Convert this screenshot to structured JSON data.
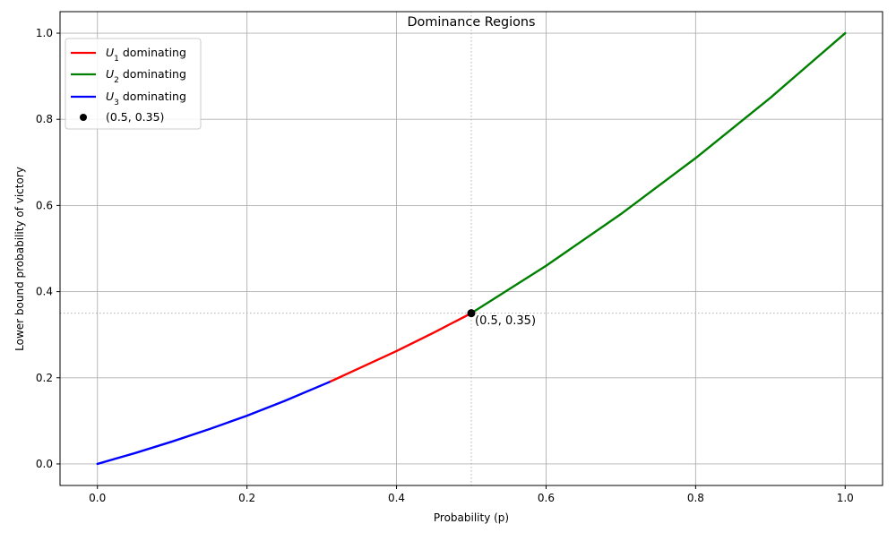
{
  "chart_data": {
    "type": "line",
    "title": "Dominance Regions",
    "xlabel": "Probability (p)",
    "ylabel": "Lower bound probability of victory",
    "xlim": [
      -0.05,
      1.05
    ],
    "ylim": [
      -0.05,
      1.05
    ],
    "xticks": [
      0.0,
      0.2,
      0.4,
      0.6,
      0.8,
      1.0
    ],
    "xtick_labels": [
      "0.0",
      "0.2",
      "0.4",
      "0.6",
      "0.8",
      "1.0"
    ],
    "yticks": [
      0.0,
      0.2,
      0.4,
      0.6,
      0.8,
      1.0
    ],
    "ytick_labels": [
      "0.0",
      "0.2",
      "0.4",
      "0.6",
      "0.8",
      "1.0"
    ],
    "grid": true,
    "legend_position": "top-left",
    "series": [
      {
        "name": "U1 dominating",
        "legend_sub": "1",
        "legend_rest": " dominating",
        "color": "#ff0000",
        "x": [
          0.31,
          0.35,
          0.4,
          0.45,
          0.5
        ],
        "y": [
          0.19,
          0.222,
          0.262,
          0.305,
          0.35
        ]
      },
      {
        "name": "U2 dominating",
        "legend_sub": "2",
        "legend_rest": " dominating",
        "color": "#008000",
        "x": [
          0.5,
          0.6,
          0.7,
          0.8,
          0.9,
          1.0
        ],
        "y": [
          0.35,
          0.46,
          0.58,
          0.71,
          0.85,
          1.0
        ]
      },
      {
        "name": "U3 dominating",
        "legend_sub": "3",
        "legend_rest": " dominating",
        "color": "#0000ff",
        "x": [
          0.0,
          0.05,
          0.1,
          0.15,
          0.2,
          0.25,
          0.31
        ],
        "y": [
          0.0,
          0.025,
          0.052,
          0.081,
          0.112,
          0.146,
          0.19
        ]
      }
    ],
    "marker_point": {
      "label": "(0.5, 0.35)",
      "x": 0.5,
      "y": 0.35,
      "color": "#000000"
    },
    "annotation": {
      "text": "(0.5, 0.35)",
      "x": 0.5,
      "y": 0.35
    },
    "reference_lines": {
      "vertical_x": 0.5,
      "horizontal_y": 0.35,
      "style": "dotted",
      "color": "#b0b0b0"
    }
  }
}
